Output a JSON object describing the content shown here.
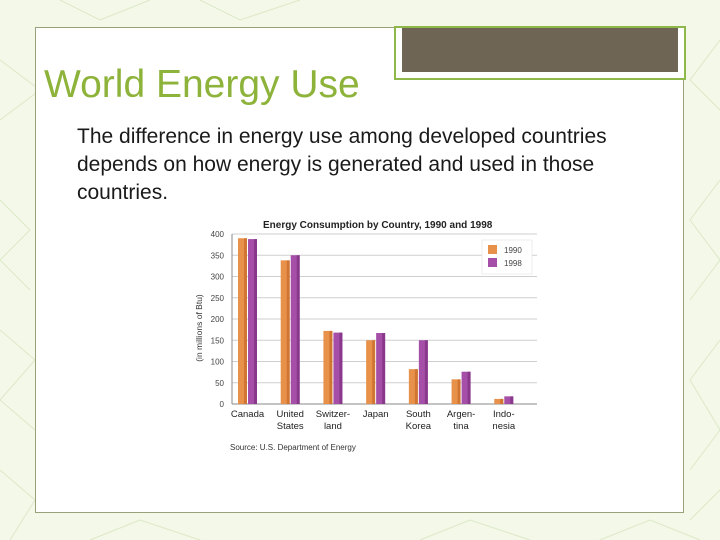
{
  "slide": {
    "title": "World Energy Use",
    "body": "The difference in energy use among developed countries depends on how energy is generated and used in those countries."
  },
  "colors": {
    "title": "#8db33a",
    "accent_green": "#8fb84a",
    "tab_fill": "#6e6555",
    "series_1990": "#e8914a",
    "series_1998": "#a64fa8"
  },
  "chart_data": {
    "type": "bar",
    "title": "Energy Consumption by Country, 1990 and 1998",
    "ylabel": "(in millions of Btu)",
    "xlabel": "",
    "ylim": [
      0,
      400
    ],
    "yticks": [
      0,
      50,
      100,
      150,
      200,
      250,
      300,
      350,
      400
    ],
    "grid": true,
    "legend_position": "top-right",
    "categories": [
      [
        "Canada"
      ],
      [
        "United",
        "States"
      ],
      [
        "Switzer-",
        "land"
      ],
      [
        "Japan"
      ],
      [
        "South",
        "Korea"
      ],
      [
        "Argen-",
        "tina"
      ],
      [
        "Indo-",
        "nesia"
      ]
    ],
    "series": [
      {
        "name": "1990",
        "values": [
          390,
          338,
          172,
          150,
          82,
          58,
          12
        ]
      },
      {
        "name": "1998",
        "values": [
          388,
          350,
          168,
          167,
          150,
          76,
          18
        ]
      }
    ],
    "source": "Source: U.S. Department of Energy"
  }
}
